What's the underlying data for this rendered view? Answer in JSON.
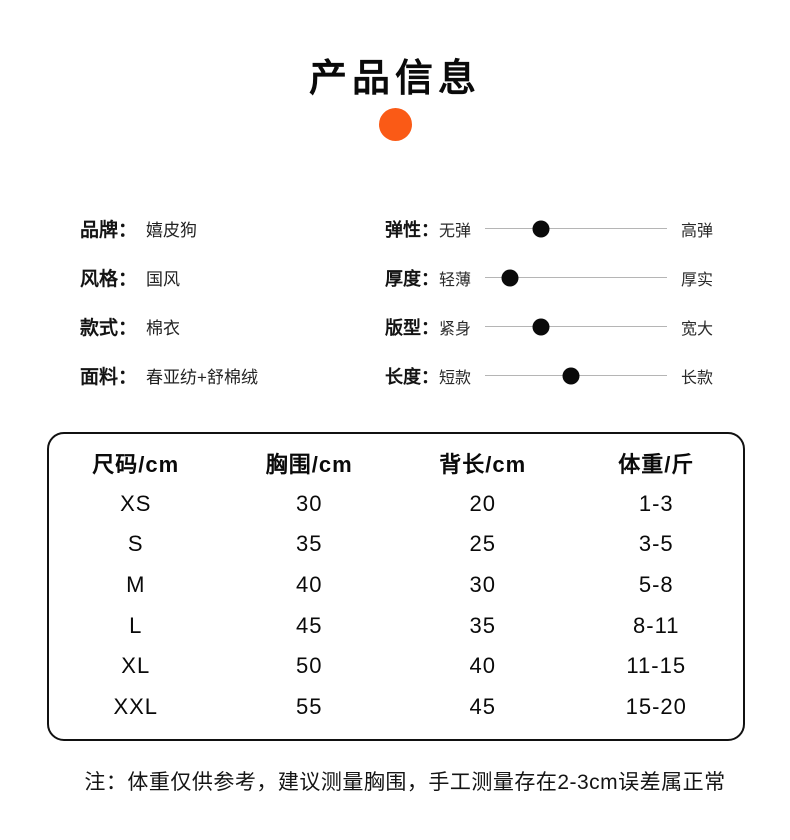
{
  "header": {
    "title": "产品信息"
  },
  "colors": {
    "accent": "#FA5A16",
    "slider_dot": "#0a0a0a",
    "slider_track": "#b5b5b5"
  },
  "specs": [
    {
      "label": "品牌：",
      "value": "嬉皮狗"
    },
    {
      "label": "风格：",
      "value": "国风"
    },
    {
      "label": "款式：",
      "value": "棉衣"
    },
    {
      "label": "面料：",
      "value": "春亚纺+舒棉绒"
    }
  ],
  "sliders": [
    {
      "label": "弹性：",
      "left": "无弹",
      "right": "高弹",
      "position_pct": 31
    },
    {
      "label": "厚度：",
      "left": "轻薄",
      "right": "厚实",
      "position_pct": 13.5
    },
    {
      "label": "版型：",
      "left": "紧身",
      "right": "宽大",
      "position_pct": 31
    },
    {
      "label": "长度：",
      "left": "短款",
      "right": "长款",
      "position_pct": 47
    }
  ],
  "size_table": {
    "headers": [
      "尺码/cm",
      "胸围/cm",
      "背长/cm",
      "体重/斤"
    ],
    "rows": [
      [
        "XS",
        "30",
        "20",
        "1-3"
      ],
      [
        "S",
        "35",
        "25",
        "3-5"
      ],
      [
        "M",
        "40",
        "30",
        "5-8"
      ],
      [
        "L",
        "45",
        "35",
        "8-11"
      ],
      [
        "XL",
        "50",
        "40",
        "11-15"
      ],
      [
        "XXL",
        "55",
        "45",
        "15-20"
      ]
    ]
  },
  "note": "注：体重仅供参考，建议测量胸围，手工测量存在2-3cm误差属正常"
}
